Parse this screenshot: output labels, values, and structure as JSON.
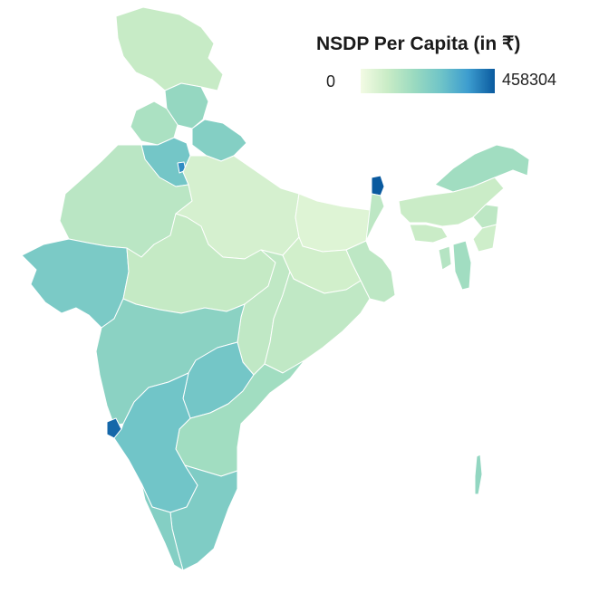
{
  "legend": {
    "title": "NSDP Per Capita (in ₹)",
    "min_label": "0",
    "max_label": "458304",
    "min_value": 0,
    "max_value": 458304,
    "gradient_colors": [
      "#f3fbe4",
      "#c9ecc6",
      "#9adac0",
      "#6fc4c8",
      "#3d9dcf",
      "#0a5a9f"
    ]
  },
  "regions": [
    {
      "id": "jammu-kashmir",
      "value": 95000
    },
    {
      "id": "himachal-pradesh",
      "value": 195000
    },
    {
      "id": "punjab",
      "value": 150000
    },
    {
      "id": "uttarakhand",
      "value": 230000
    },
    {
      "id": "haryana",
      "value": 265000
    },
    {
      "id": "delhi",
      "value": 390000
    },
    {
      "id": "rajasthan",
      "value": 120000
    },
    {
      "id": "uttar-pradesh",
      "value": 65000
    },
    {
      "id": "bihar",
      "value": 45000
    },
    {
      "id": "sikkim",
      "value": 458304
    },
    {
      "id": "gujarat",
      "value": 250000
    },
    {
      "id": "madhya-pradesh",
      "value": 100000
    },
    {
      "id": "chhattisgarh",
      "value": 110000
    },
    {
      "id": "jharkhand",
      "value": 75000
    },
    {
      "id": "west-bengal",
      "value": 115000
    },
    {
      "id": "odisha",
      "value": 110000
    },
    {
      "id": "maharashtra",
      "value": 215000
    },
    {
      "id": "telangana",
      "value": 265000
    },
    {
      "id": "andhra-pradesh",
      "value": 170000
    },
    {
      "id": "goa",
      "value": 440000
    },
    {
      "id": "karnataka",
      "value": 270000
    },
    {
      "id": "tamil-nadu",
      "value": 240000
    },
    {
      "id": "kerala",
      "value": 230000
    },
    {
      "id": "arunachal-pradesh",
      "value": 170000
    },
    {
      "id": "assam",
      "value": 90000
    },
    {
      "id": "meghalaya",
      "value": 90000
    },
    {
      "id": "nagaland",
      "value": 115000
    },
    {
      "id": "manipur",
      "value": 80000
    },
    {
      "id": "mizoram",
      "value": 170000
    },
    {
      "id": "tripura",
      "value": 130000
    },
    {
      "id": "andaman-nicobar",
      "value": 200000
    }
  ]
}
